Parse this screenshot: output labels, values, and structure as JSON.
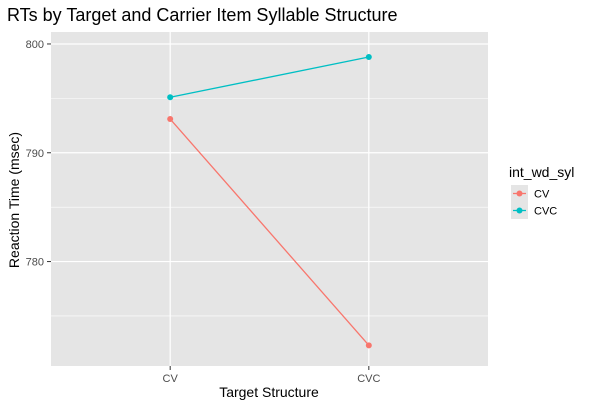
{
  "chart_data": {
    "type": "line",
    "title": "RTs by Target and Carrier Item Syllable Structure",
    "xlabel": "Target Structure",
    "ylabel": "Reaction Time (msec)",
    "categories": [
      "CV",
      "CVC"
    ],
    "ylim": [
      770.4,
      801.1
    ],
    "yticks": [
      780,
      790,
      800
    ],
    "grid": true,
    "legend": {
      "title": "int_wd_syl",
      "placement": "right"
    },
    "series": [
      {
        "name": "CV",
        "color": "#f8766d",
        "values": [
          793.1,
          772.3
        ]
      },
      {
        "name": "CVC",
        "color": "#00bfc4",
        "values": [
          795.1,
          798.8
        ]
      }
    ]
  },
  "colors": {
    "panel_background": "#e5e5e5",
    "grid_line": "#ffffff",
    "tick": "#333333"
  }
}
